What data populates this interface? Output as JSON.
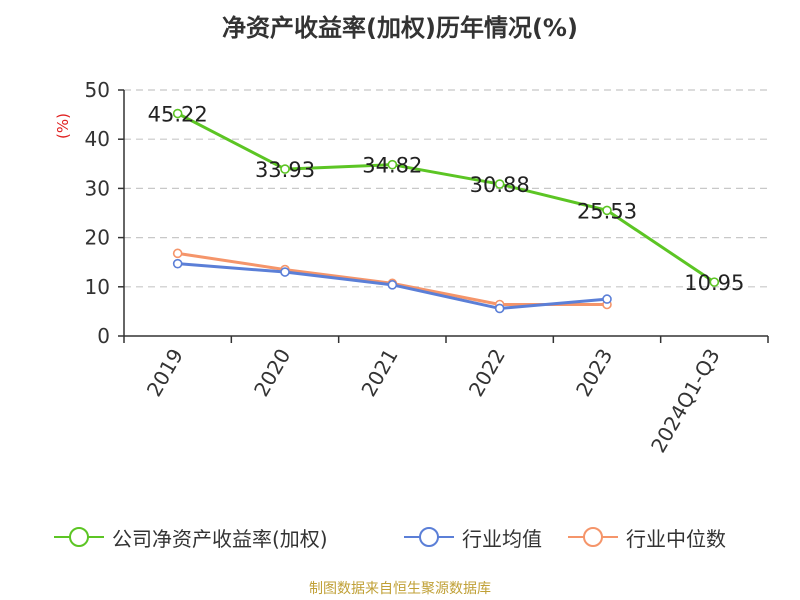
{
  "title": "净资产收益率(加权)历年情况(%)",
  "watermark": "制图数据来自恒生聚源数据库",
  "chart_data": {
    "type": "line",
    "title": "净资产收益率(加权)历年情况(%)",
    "ylabel": "(%)",
    "xlabel": "",
    "ylim": [
      0,
      50
    ],
    "yticks": [
      0,
      10,
      20,
      30,
      40,
      50
    ],
    "grid": true,
    "legend_position": "bottom",
    "categories": [
      "2019",
      "2020",
      "2021",
      "2022",
      "2023",
      "2024Q1-Q3"
    ],
    "series": [
      {
        "name": "公司净资产收益率(加权)",
        "color": "#5cc524",
        "values": [
          45.22,
          33.93,
          34.82,
          30.88,
          25.53,
          10.95
        ],
        "labels": [
          "45.22",
          "33.93",
          "34.82",
          "30.88",
          "25.53",
          "10.95"
        ]
      },
      {
        "name": "行业均值",
        "color": "#5b7fd7",
        "values": [
          14.7,
          13.0,
          10.4,
          5.6,
          7.5,
          null
        ]
      },
      {
        "name": "行业中位数",
        "color": "#f5956a",
        "values": [
          16.8,
          13.5,
          10.7,
          6.4,
          6.4,
          null
        ]
      }
    ]
  }
}
